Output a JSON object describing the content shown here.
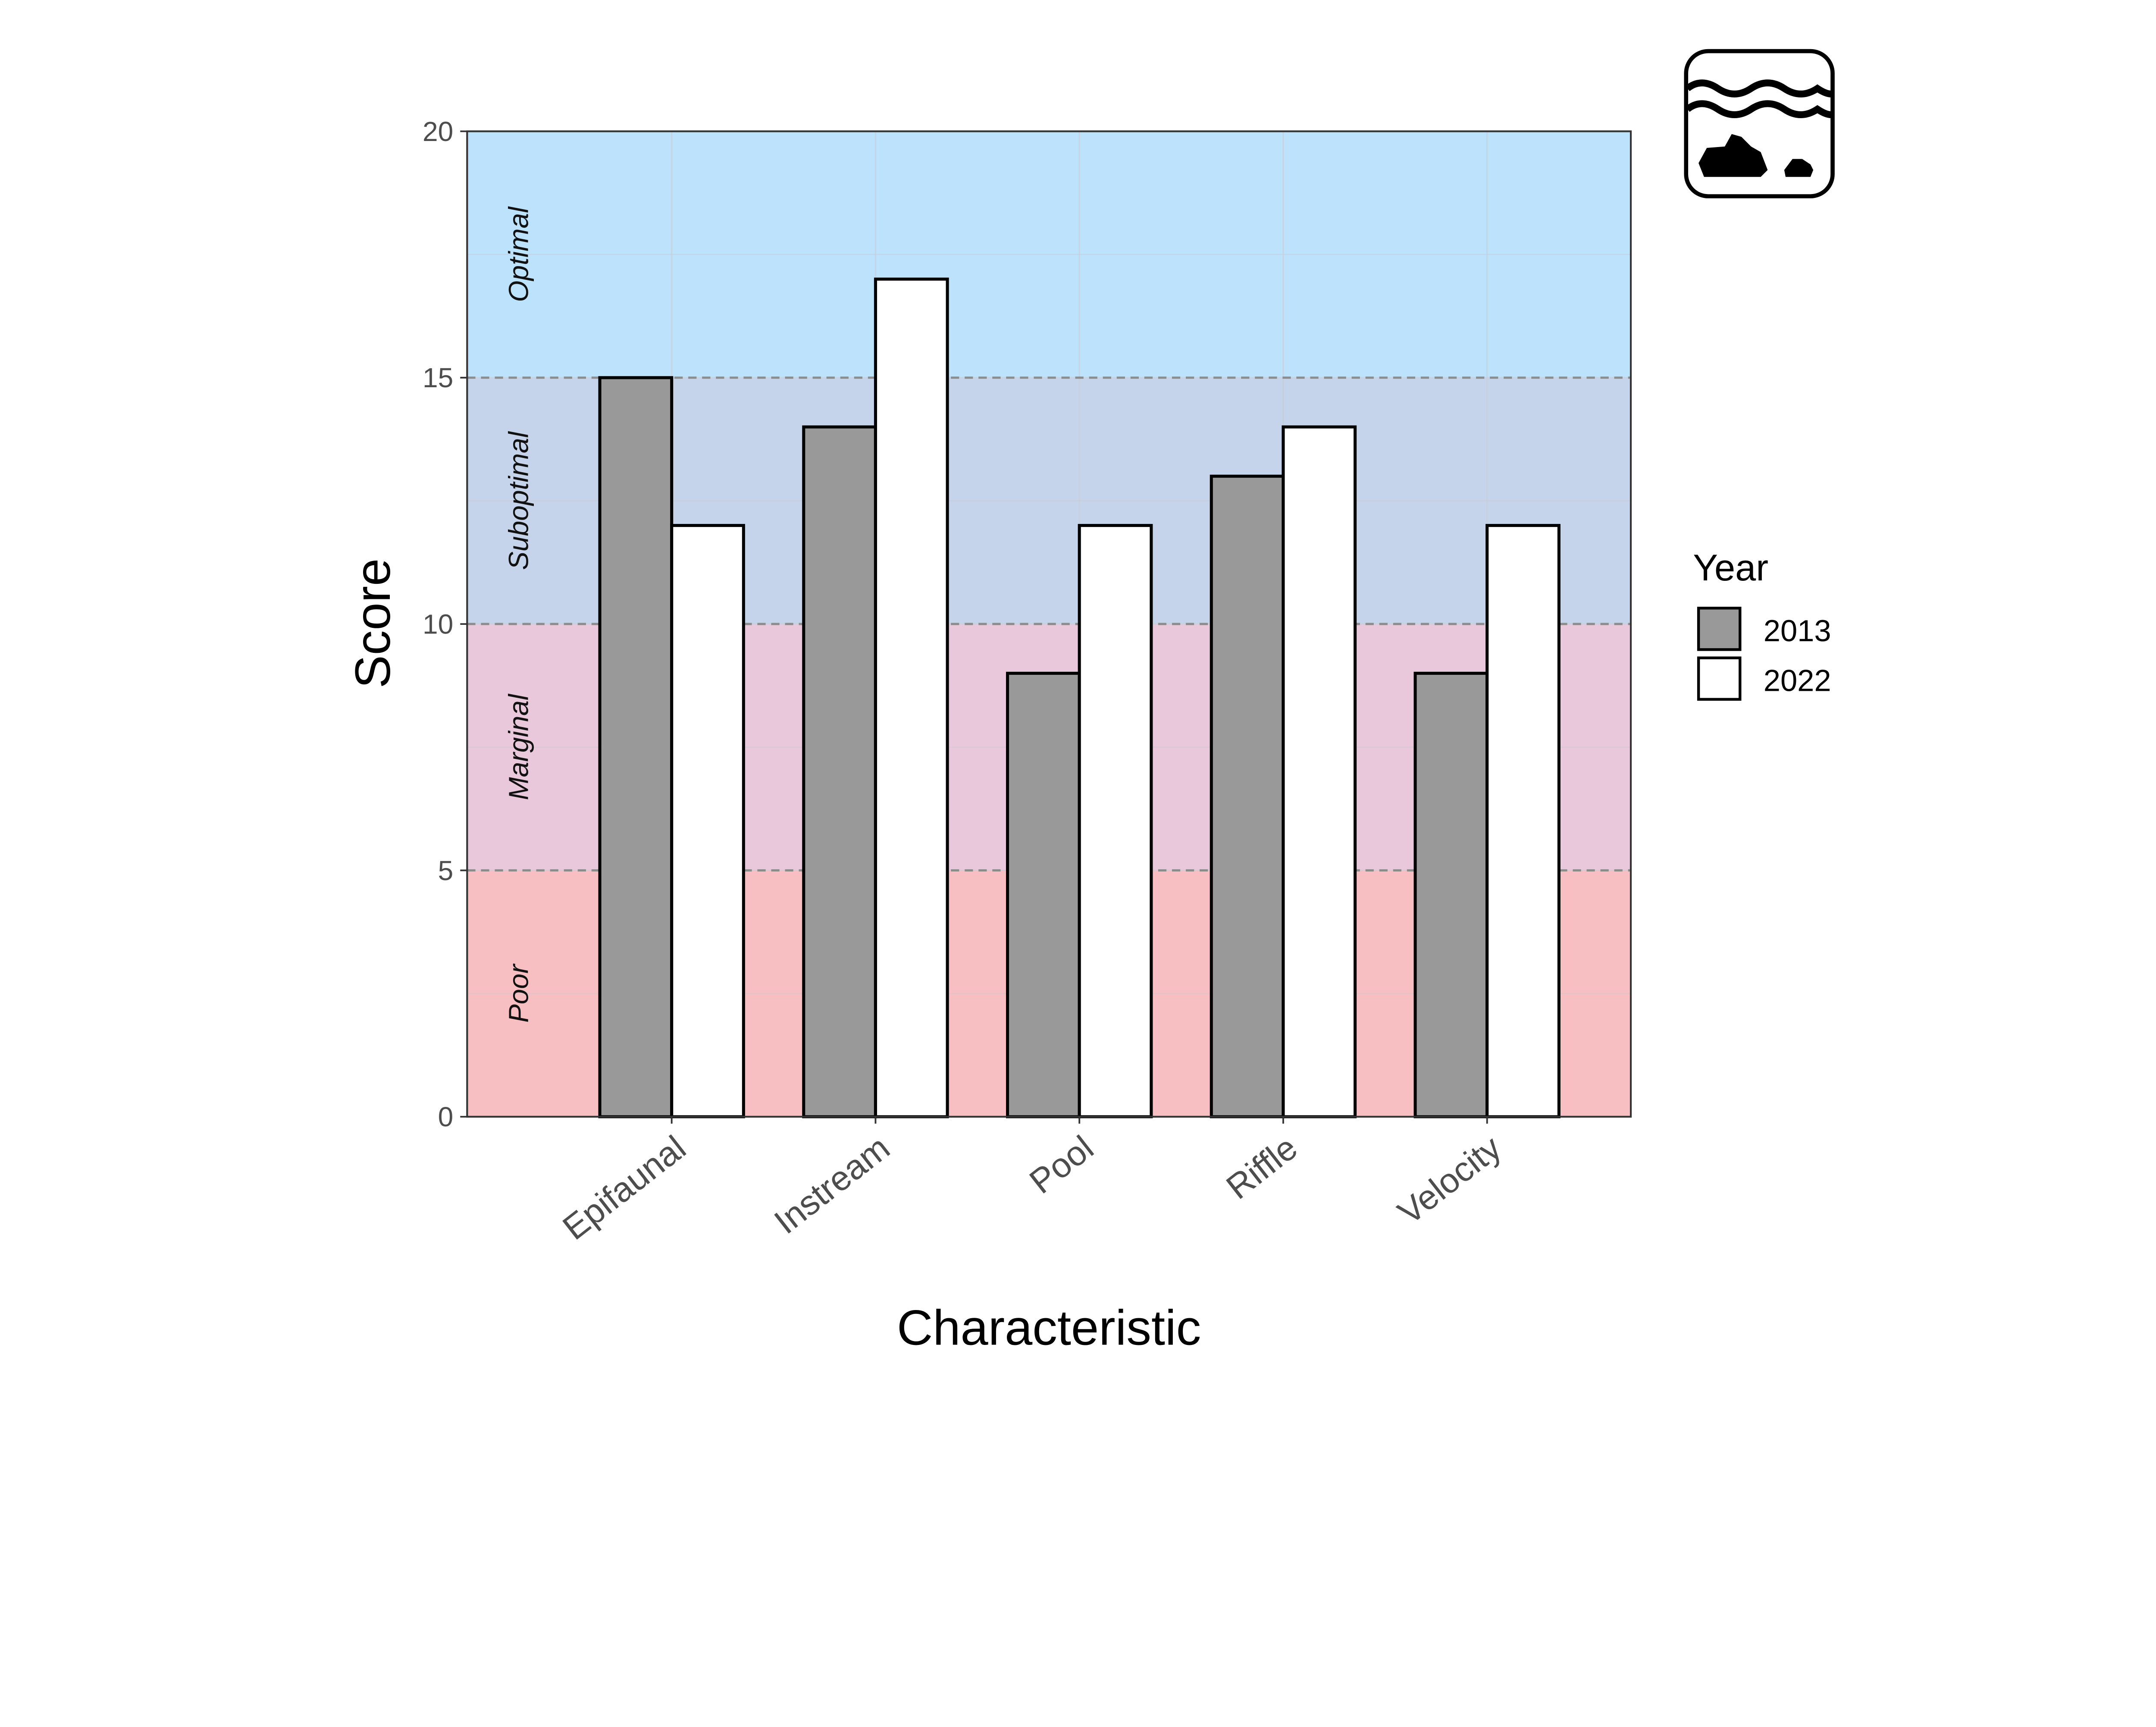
{
  "chart_data": {
    "type": "bar",
    "title": "",
    "xlabel": "Characteristic",
    "ylabel": "Score",
    "ylim": [
      0,
      20
    ],
    "yticks": [
      0,
      5,
      10,
      15,
      20
    ],
    "grid": true,
    "categories": [
      "Epifaunal",
      "Instream",
      "Pool",
      "Riffle",
      "Velocity"
    ],
    "series": [
      {
        "name": "2013",
        "color": "#999999",
        "values": [
          15,
          14,
          9,
          13,
          9
        ]
      },
      {
        "name": "2022",
        "color": "#ffffff",
        "values": [
          12,
          17,
          12,
          14,
          12
        ]
      }
    ],
    "legend": {
      "title": "Year",
      "placement": "right"
    },
    "bands": [
      {
        "label": "Poor",
        "from": 0,
        "to": 5,
        "color": "#f7bfc2"
      },
      {
        "label": "Marginal",
        "from": 5,
        "to": 10,
        "color": "#e8c8da"
      },
      {
        "label": "Suboptimal",
        "from": 10,
        "to": 15,
        "color": "#c5d4ea"
      },
      {
        "label": "Optimal",
        "from": 15,
        "to": 20,
        "color": "#bde2fb"
      }
    ],
    "band_thresholds": [
      5,
      10,
      15
    ]
  },
  "icon": "river-habitat-water-rocks-icon"
}
